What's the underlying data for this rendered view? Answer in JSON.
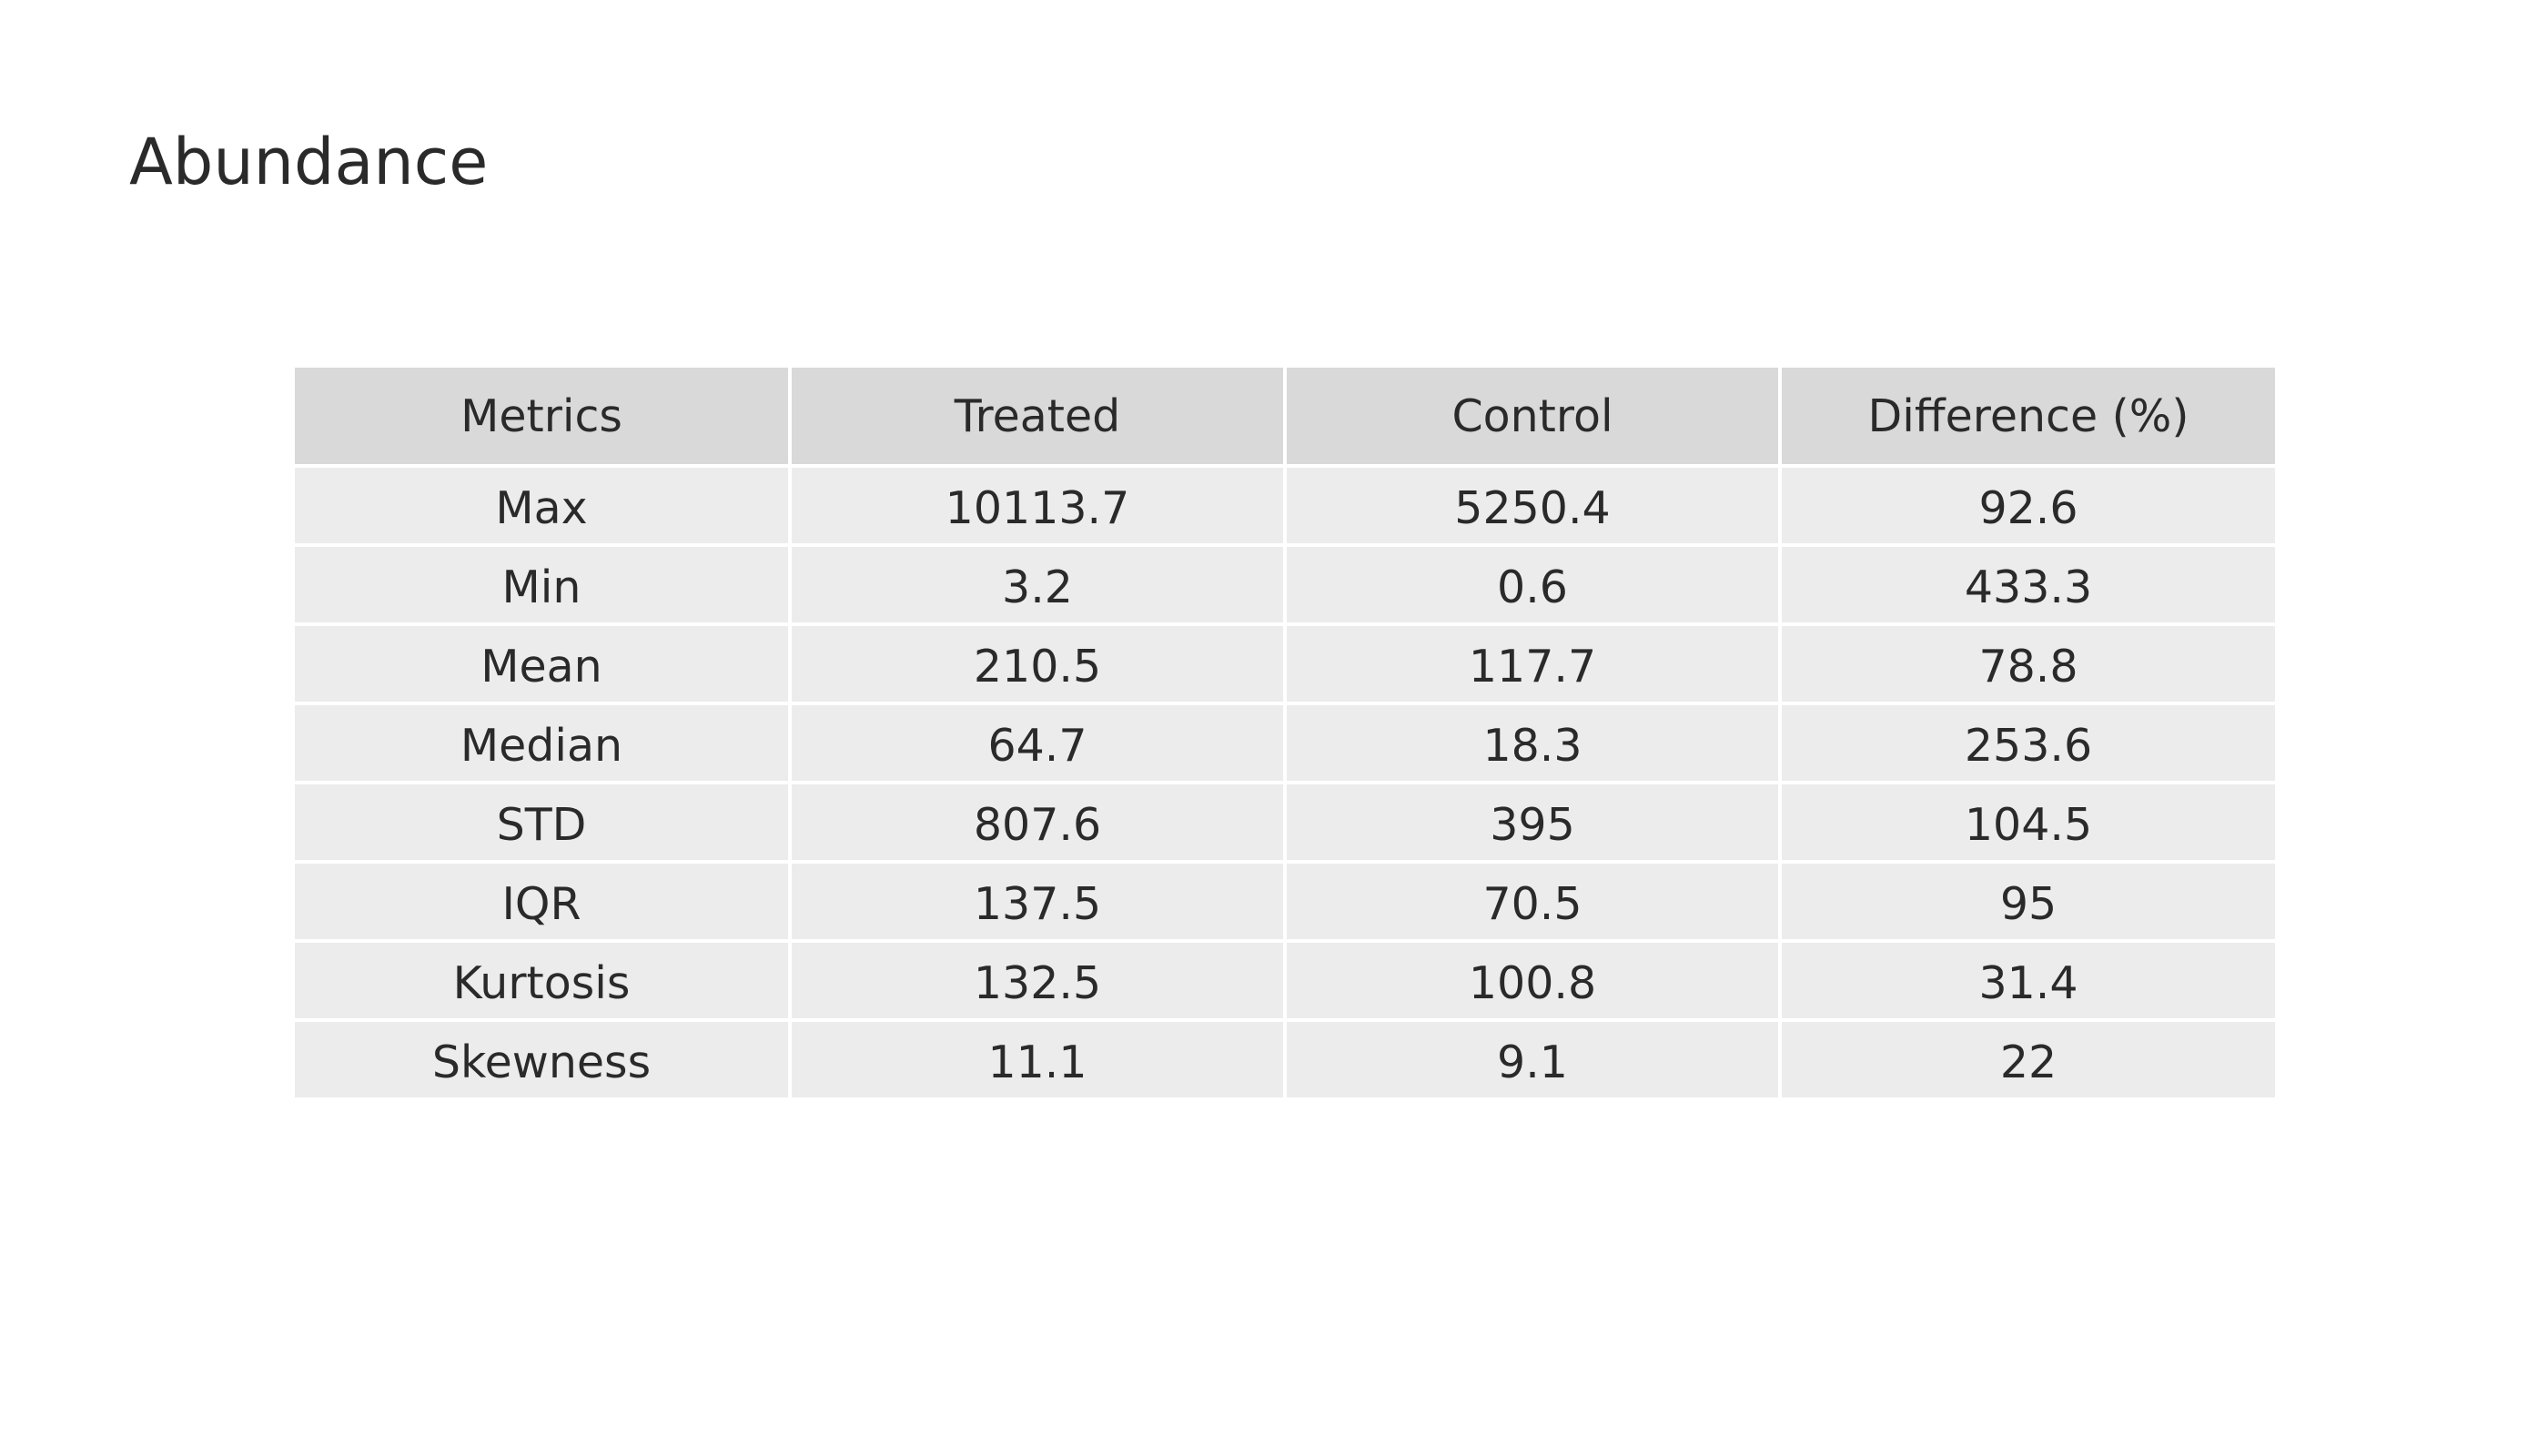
{
  "chart_data": {
    "type": "table",
    "title": "Abundance",
    "columns": [
      "Metrics",
      "Treated",
      "Control",
      "Difference (%)"
    ],
    "rows": [
      [
        "Max",
        "10113.7",
        "5250.4",
        "92.6"
      ],
      [
        "Min",
        "3.2",
        "0.6",
        "433.3"
      ],
      [
        "Mean",
        "210.5",
        "117.7",
        "78.8"
      ],
      [
        "Median",
        "64.7",
        "18.3",
        "253.6"
      ],
      [
        "STD",
        "807.6",
        "395",
        "104.5"
      ],
      [
        "IQR",
        "137.5",
        "70.5",
        "95"
      ],
      [
        "Kurtosis",
        "132.5",
        "100.8",
        "31.4"
      ],
      [
        "Skewness",
        "11.1",
        "9.1",
        "22"
      ]
    ]
  },
  "colors": {
    "header_background": "#d9d9d9",
    "cell_background": "#ececec",
    "text": "#2a2a2a"
  }
}
